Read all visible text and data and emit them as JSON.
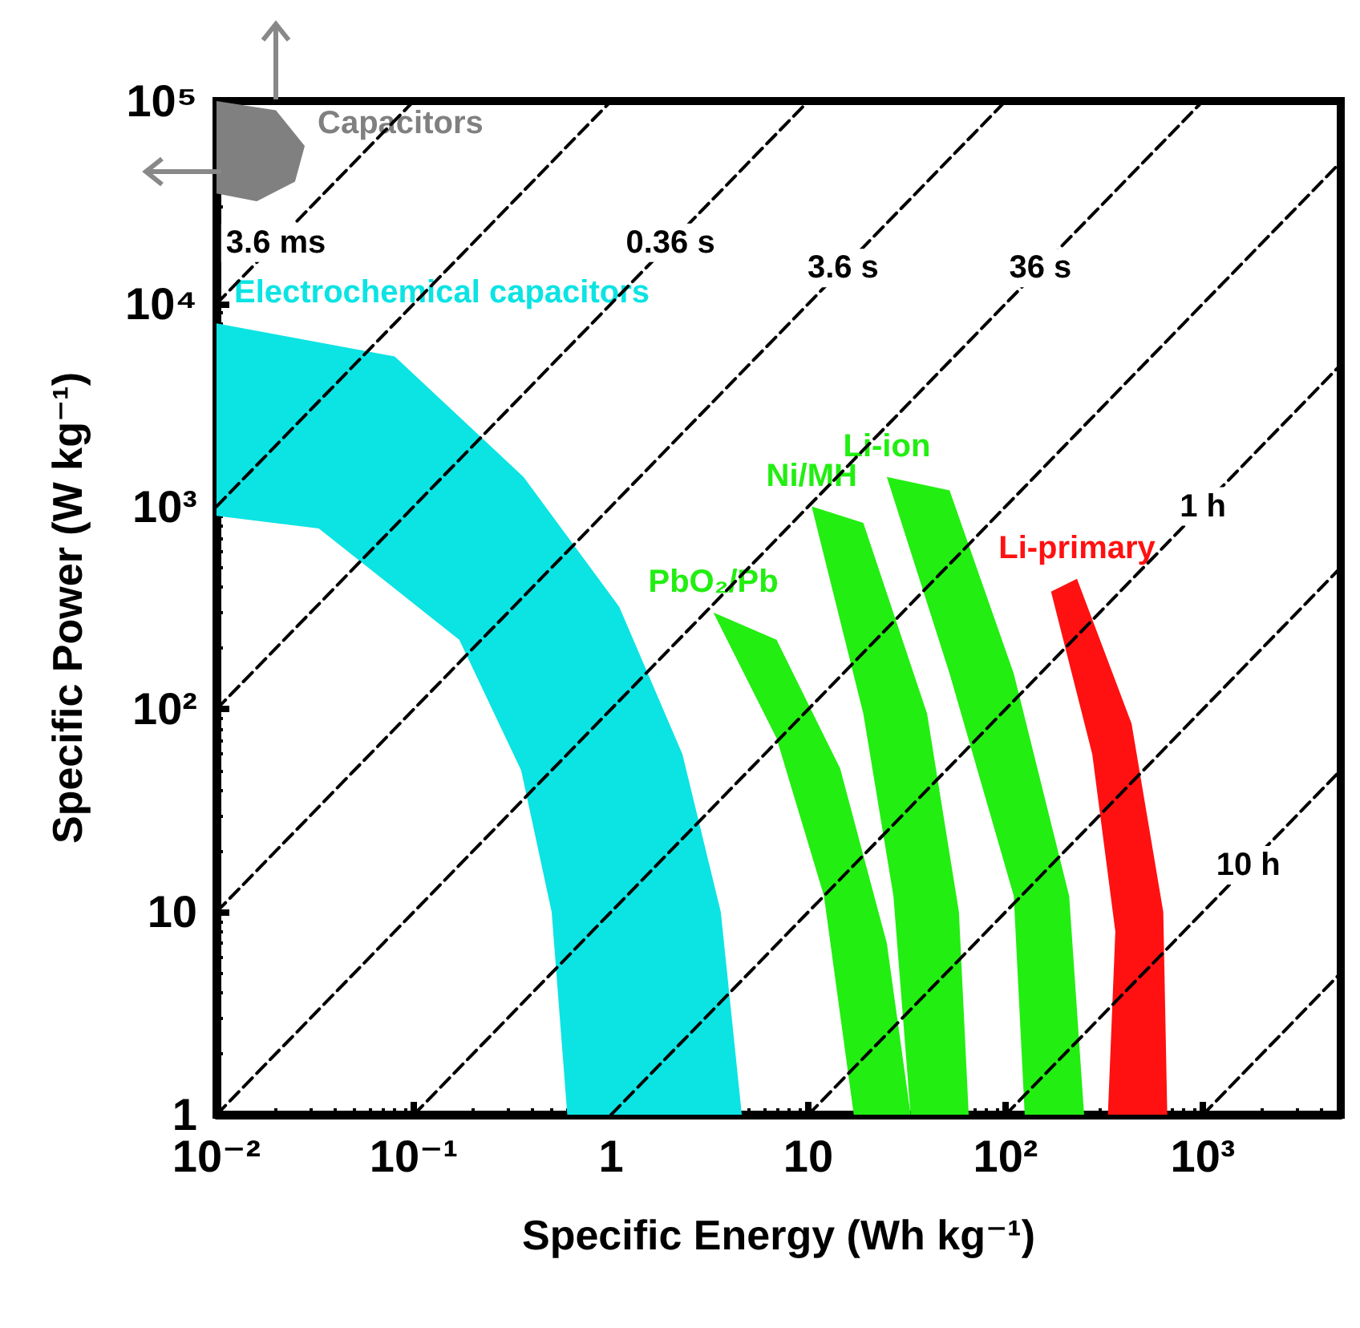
{
  "chart_data": {
    "type": "line",
    "xlabel": "Specific Energy (Wh kg⁻¹)",
    "ylabel": "Specific Power (W kg⁻¹)",
    "log": "xy",
    "xlim": [
      0.01,
      5000
    ],
    "ylim": [
      1,
      100000
    ],
    "xticks": [
      {
        "value": 0.01,
        "label": "10⁻²"
      },
      {
        "value": 0.1,
        "label": "10⁻¹"
      },
      1,
      10,
      {
        "value": 100,
        "label": "10²"
      },
      {
        "value": 1000,
        "label": "10³"
      }
    ],
    "yticks": [
      1,
      10,
      {
        "value": 100,
        "label": "10²"
      },
      {
        "value": 1000,
        "label": "10³"
      },
      {
        "value": 10000,
        "label": "10⁴"
      },
      {
        "value": 100000,
        "label": "10⁵"
      }
    ],
    "line_style": "dashed",
    "marker": "none",
    "series": [
      {
        "color": "#000000",
        "x": [
          0.01,
          0.1
        ],
        "values": [
          10000,
          100000
        ]
      },
      {
        "color": "#000000",
        "x": [
          0.01,
          1
        ],
        "values": [
          1000,
          100000
        ]
      },
      {
        "color": "#000000",
        "x": [
          0.01,
          10
        ],
        "values": [
          100,
          100000
        ]
      },
      {
        "color": "#000000",
        "x": [
          0.01,
          100
        ],
        "values": [
          10,
          100000
        ]
      },
      {
        "color": "#000000",
        "x": [
          0.01,
          1000
        ],
        "values": [
          1,
          100000
        ]
      },
      {
        "color": "#000000",
        "x": [
          0.1,
          5000
        ],
        "values": [
          1,
          50000
        ]
      },
      {
        "color": "#000000",
        "x": [
          1,
          5000
        ],
        "values": [
          1,
          5000
        ]
      },
      {
        "color": "#000000",
        "x": [
          10,
          5000
        ],
        "values": [
          1,
          500
        ]
      },
      {
        "color": "#000000",
        "x": [
          100,
          5000
        ],
        "values": [
          1,
          50
        ]
      },
      {
        "color": "#000000",
        "x": [
          1000,
          5000
        ],
        "values": [
          1,
          5
        ]
      },
      {
        "type": "area",
        "name": "Electrochemical capacitors",
        "color": "#0ce3e3",
        "x": [
          0.01,
          0.08,
          0.36,
          1.1,
          2.3,
          3.6,
          4.6,
          0.6,
          0.5,
          0.35,
          0.17,
          0.033,
          0.01
        ],
        "values": [
          8000,
          5500,
          1400,
          320,
          60,
          10,
          1,
          1,
          10,
          50,
          220,
          780,
          900
        ]
      },
      {
        "type": "area",
        "name": "PbO₂/Pb",
        "color": "#22ee11",
        "x": [
          3.3,
          6.9,
          14.5,
          25,
          33,
          17,
          12,
          6.9
        ],
        "values": [
          300,
          220,
          51,
          7,
          1,
          1,
          12,
          72
        ]
      },
      {
        "type": "area",
        "name": "Ni/MH",
        "color": "#22ee11",
        "x": [
          10.4,
          19,
          40,
          58,
          65,
          33,
          27,
          19
        ],
        "values": [
          1000,
          830,
          95,
          10,
          1,
          1,
          12,
          95
        ]
      },
      {
        "type": "area",
        "name": "Li-ion",
        "color": "#22ee11",
        "x": [
          25,
          52,
          110,
          210,
          250,
          125,
          110,
          52
        ],
        "values": [
          1400,
          1200,
          150,
          12,
          1,
          1,
          12,
          150
        ]
      },
      {
        "type": "area",
        "name": "Li-primary",
        "color": "#ff1111",
        "x": [
          170,
          230,
          435,
          630,
          660,
          330,
          360,
          275
        ],
        "values": [
          380,
          440,
          85,
          10,
          1,
          1,
          8,
          60
        ]
      },
      {
        "type": "area",
        "name": "Capacitors",
        "color": "#808080",
        "x": [
          0.01,
          0.02,
          0.028,
          0.025,
          0.016,
          0.01
        ],
        "values": [
          100000,
          90000,
          60000,
          40000,
          32000,
          35000
        ]
      }
    ],
    "annotations": [
      {
        "text": "3.6 ms",
        "x": 0.02,
        "y": 20000
      },
      {
        "text": "0.36 s",
        "x": 2,
        "y": 20000
      },
      {
        "text": "3.6 s",
        "x": 15,
        "y": 15000
      },
      {
        "text": "36 s",
        "x": 150,
        "y": 15000
      },
      {
        "text": "1 h",
        "x": 1000,
        "y": 1000
      },
      {
        "text": "10 h",
        "x": 1700,
        "y": 17
      }
    ]
  }
}
